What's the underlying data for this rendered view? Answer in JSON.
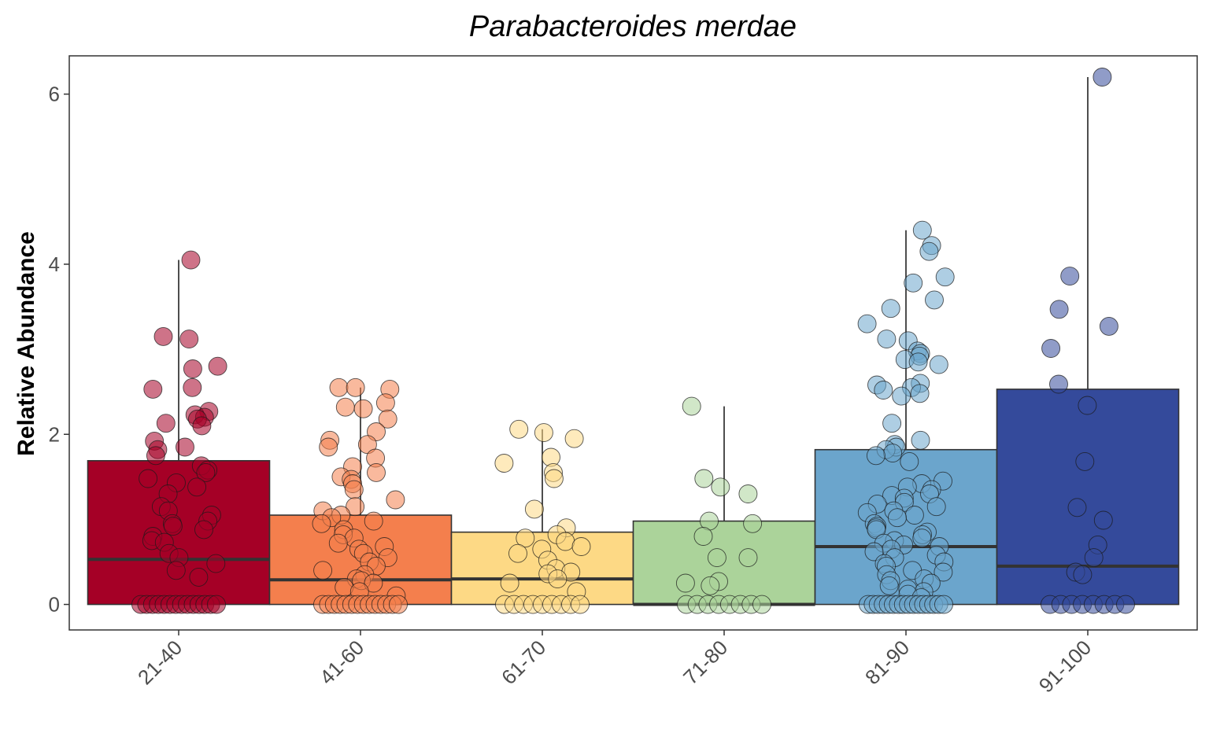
{
  "chart_data": {
    "type": "box",
    "title": "Parabacteroides merdae",
    "xlabel": "",
    "ylabel": "Relative Abundance",
    "ylim": [
      -0.3,
      6.45
    ],
    "yticks": [
      0,
      2,
      4,
      6
    ],
    "grid": false,
    "legend": "none",
    "categories": [
      "21-40",
      "41-60",
      "61-70",
      "71-80",
      "81-90",
      "91-100"
    ],
    "colors": [
      "#a50026",
      "#f47f4d",
      "#fdd985",
      "#abd39a",
      "#6ba5cc",
      "#344a9b"
    ],
    "boxes": [
      {
        "q1": 0,
        "median": 0.53,
        "q3": 1.69,
        "whisker_low": 0,
        "whisker_high": 4.05
      },
      {
        "q1": 0,
        "median": 0.29,
        "q3": 1.05,
        "whisker_low": 0,
        "whisker_high": 2.55
      },
      {
        "q1": 0,
        "median": 0.3,
        "q3": 0.85,
        "whisker_low": 0,
        "whisker_high": 2.06
      },
      {
        "q1": 0,
        "median": 0.0,
        "q3": 0.98,
        "whisker_low": 0,
        "whisker_high": 2.33
      },
      {
        "q1": 0,
        "median": 0.68,
        "q3": 1.82,
        "whisker_low": 0,
        "whisker_high": 4.4
      },
      {
        "q1": 0,
        "median": 0.45,
        "q3": 2.53,
        "whisker_low": 0,
        "whisker_high": 6.2
      }
    ],
    "points": [
      [
        4.05,
        3.15,
        3.12,
        2.8,
        2.77,
        2.55,
        2.53,
        2.27,
        2.23,
        2.2,
        2.18,
        2.13,
        2.1,
        1.92,
        1.85,
        1.82,
        1.75,
        1.63,
        1.58,
        1.55,
        1.48,
        1.43,
        1.38,
        1.3,
        1.15,
        1.1,
        1.05,
        0.98,
        0.95,
        0.92,
        0.88,
        0.8,
        0.75,
        0.73,
        0.6,
        0.55,
        0.48,
        0.4,
        0.32,
        0.0,
        0.0,
        0.0,
        0.0,
        0.0,
        0.0,
        0.0,
        0.0,
        0.0,
        0.0,
        0.0,
        0.0,
        0.0,
        0.0
      ],
      [
        2.55,
        2.55,
        2.53,
        2.37,
        2.32,
        2.3,
        2.18,
        2.03,
        1.93,
        1.88,
        1.85,
        1.72,
        1.62,
        1.55,
        1.5,
        1.47,
        1.42,
        1.35,
        1.23,
        1.15,
        1.1,
        1.05,
        1.02,
        0.98,
        0.95,
        0.88,
        0.82,
        0.78,
        0.72,
        0.68,
        0.65,
        0.6,
        0.55,
        0.5,
        0.45,
        0.4,
        0.35,
        0.3,
        0.28,
        0.25,
        0.2,
        0.15,
        0.1,
        0.0,
        0.0,
        0.0,
        0.0,
        0.0,
        0.0,
        0.0,
        0.0,
        0.0,
        0.0,
        0.0,
        0.0,
        0.0,
        0.0
      ],
      [
        2.06,
        2.02,
        1.95,
        1.73,
        1.66,
        1.55,
        1.48,
        1.12,
        0.9,
        0.82,
        0.78,
        0.74,
        0.68,
        0.65,
        0.6,
        0.52,
        0.42,
        0.38,
        0.36,
        0.3,
        0.25,
        0.15,
        0.0,
        0.0,
        0.0,
        0.0,
        0.0,
        0.0,
        0.0,
        0.0,
        0.0
      ],
      [
        2.33,
        1.48,
        1.38,
        1.3,
        0.98,
        0.95,
        0.8,
        0.55,
        0.55,
        0.27,
        0.25,
        0.22,
        0.0,
        0.0,
        0.0,
        0.0,
        0.0,
        0.0,
        0.0,
        0.0
      ],
      [
        4.4,
        4.22,
        4.15,
        3.85,
        3.78,
        3.58,
        3.48,
        3.3,
        3.12,
        3.1,
        2.98,
        2.95,
        2.92,
        2.88,
        2.85,
        2.82,
        2.6,
        2.58,
        2.55,
        2.52,
        2.48,
        2.45,
        2.13,
        1.93,
        1.88,
        1.85,
        1.82,
        1.78,
        1.75,
        1.68,
        1.45,
        1.42,
        1.38,
        1.35,
        1.3,
        1.28,
        1.25,
        1.2,
        1.18,
        1.15,
        1.1,
        1.08,
        1.05,
        1.02,
        0.95,
        0.92,
        0.9,
        0.88,
        0.85,
        0.82,
        0.78,
        0.75,
        0.72,
        0.7,
        0.68,
        0.65,
        0.62,
        0.58,
        0.55,
        0.5,
        0.48,
        0.45,
        0.4,
        0.38,
        0.35,
        0.3,
        0.28,
        0.25,
        0.22,
        0.18,
        0.15,
        0.12,
        0.08,
        0.0,
        0.0,
        0.0,
        0.0,
        0.0,
        0.0,
        0.0,
        0.0,
        0.0,
        0.0,
        0.0,
        0.0,
        0.0,
        0.0,
        0.0,
        0.0
      ],
      [
        6.2,
        3.86,
        3.47,
        3.27,
        3.01,
        2.59,
        2.34,
        1.68,
        1.14,
        0.99,
        0.7,
        0.55,
        0.38,
        0.35,
        0.0,
        0.0,
        0.0,
        0.0,
        0.0,
        0.0,
        0.0,
        0.0
      ]
    ]
  }
}
